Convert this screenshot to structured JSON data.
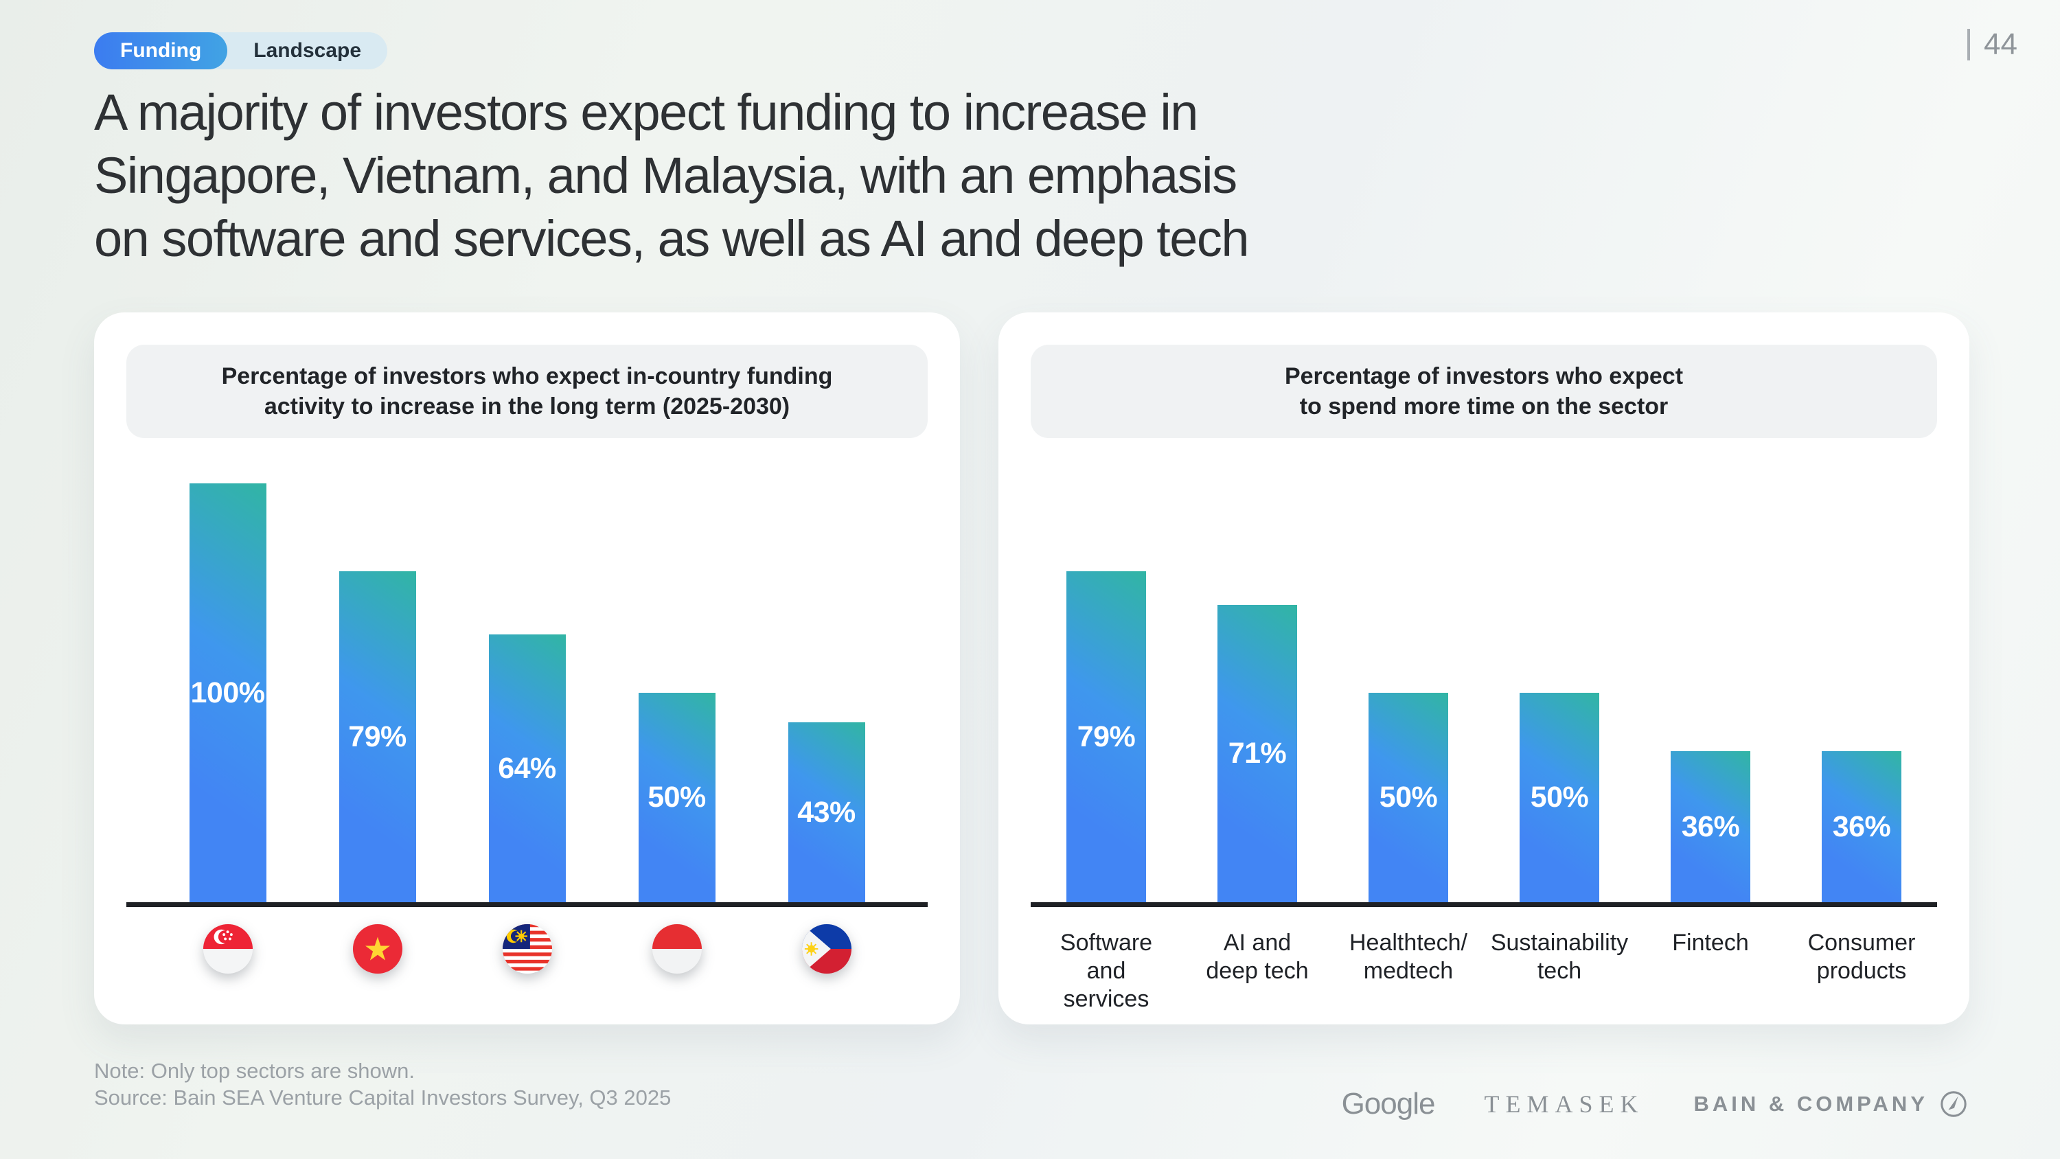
{
  "header": {
    "tabs": [
      {
        "label": "Funding",
        "active": true
      },
      {
        "label": "Landscape",
        "active": false
      }
    ],
    "page_number": "44"
  },
  "title_lines": [
    "A majority of investors expect funding to increase in",
    "Singapore, Vietnam, and Malaysia, with an emphasis",
    "on software and services, as well as AI and deep tech"
  ],
  "chart_data": [
    {
      "type": "bar",
      "title": "Percentage of investors who expect in-country funding activity to increase in the long term (2025-2030)",
      "title_lines": [
        "Percentage of investors who expect in-country funding",
        "activity to increase in the long term (2025-2030)"
      ],
      "categories": [
        "Singapore",
        "Vietnam",
        "Malaysia",
        "Indonesia",
        "Philippines"
      ],
      "category_icons": [
        "flag-singapore",
        "flag-vietnam",
        "flag-malaysia",
        "flag-indonesia",
        "flag-philippines"
      ],
      "values": [
        100,
        79,
        64,
        50,
        43
      ],
      "value_labels": [
        "100%",
        "79%",
        "64%",
        "50%",
        "43%"
      ],
      "unit": "%",
      "ylim": [
        0,
        100
      ],
      "grid": false,
      "value_label_position": "inside-middle"
    },
    {
      "type": "bar",
      "title": "Percentage of investors who expect to spend more time on the sector",
      "title_lines": [
        "Percentage of investors who expect",
        "to spend more time on the sector"
      ],
      "categories": [
        "Software and services",
        "AI and deep tech",
        "Healthtech/medtech",
        "Sustainability tech",
        "Fintech",
        "Consumer products"
      ],
      "category_label_lines": [
        [
          "Software",
          "and",
          "services"
        ],
        [
          "AI and",
          "deep tech"
        ],
        [
          "Healthtech/",
          "medtech"
        ],
        [
          "Sustainability",
          "tech"
        ],
        [
          "Fintech"
        ],
        [
          "Consumer",
          "products"
        ]
      ],
      "values": [
        79,
        71,
        50,
        50,
        36,
        36
      ],
      "value_labels": [
        "79%",
        "71%",
        "50%",
        "50%",
        "36%",
        "36%"
      ],
      "unit": "%",
      "ylim": [
        0,
        100
      ],
      "grid": false,
      "value_label_position": "inside-middle"
    }
  ],
  "footer": {
    "note": "Note: Only top sectors are shown.",
    "source": "Source: Bain SEA Venture Capital Investors Survey, Q3 2025",
    "logos": [
      "Google",
      "TEMASEK",
      "BAIN & COMPANY"
    ]
  },
  "colors": {
    "bar_gradient_top": "#31b5a4",
    "bar_gradient_bottom": "#4285f4",
    "active_tab_gradient_left": "#3c7cf0",
    "active_tab_gradient_right": "#41a3e4",
    "inactive_tab_bg": "#d9eaf2",
    "axis_line": "#1f2125",
    "header_box_bg": "#f0f2f3"
  }
}
